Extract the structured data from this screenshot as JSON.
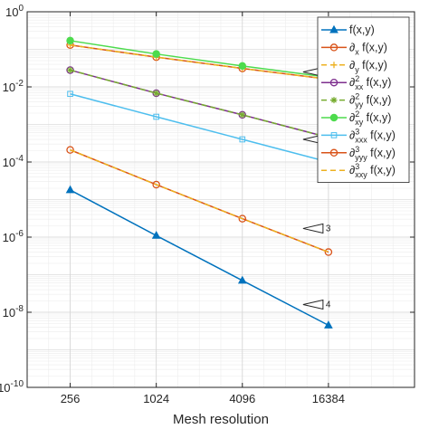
{
  "chart_data": {
    "type": "line",
    "title": "",
    "xlabel": "Mesh resolution",
    "ylabel": "",
    "x_scale": "log2",
    "y_scale": "log10",
    "xlim": [
      128,
      65536
    ],
    "ylim": [
      1e-10,
      1
    ],
    "x_ticks": [
      256,
      1024,
      4096,
      16384
    ],
    "x_tick_labels": [
      "256",
      "1024",
      "4096",
      "16384"
    ],
    "y_ticks": [
      1e-10,
      1e-08,
      1e-06,
      0.0001,
      0.01,
      1
    ],
    "y_tick_labels": [
      {
        "base": "10",
        "exp": "-10"
      },
      {
        "base": "10",
        "exp": "-8"
      },
      {
        "base": "10",
        "exp": "-6"
      },
      {
        "base": "10",
        "exp": "-4"
      },
      {
        "base": "10",
        "exp": "-2"
      },
      {
        "base": "10",
        "exp": "0"
      }
    ],
    "grid": true,
    "minor_grid": true,
    "legend_position": "top-right",
    "x": [
      256,
      1024,
      4096,
      16384
    ],
    "series": [
      {
        "name": "f(x,y)",
        "label": {
          "op": "",
          "sup": "",
          "sub": "",
          "arg": "f(x,y)"
        },
        "color": "#0072BD",
        "dash": "solid",
        "marker": "triangle",
        "marker_fill": "#0072BD",
        "values": [
          1.8e-05,
          1.1e-06,
          7e-08,
          4.5e-09
        ]
      },
      {
        "name": "∂x f(x,y)",
        "label": {
          "op": "∂",
          "sup": "",
          "sub": "x",
          "arg": " f(x,y)"
        },
        "color": "#D95319",
        "dash": "solid",
        "marker": "circle",
        "marker_fill": "none",
        "values": [
          0.13,
          0.062,
          0.031,
          0.016
        ]
      },
      {
        "name": "∂y f(x,y)",
        "label": {
          "op": "∂",
          "sup": "",
          "sub": "y",
          "arg": " f(x,y)"
        },
        "color": "#EDB120",
        "dash": "dash",
        "marker": "plus",
        "marker_fill": "none",
        "values": [
          0.13,
          0.062,
          0.031,
          0.016
        ]
      },
      {
        "name": "∂²xx f(x,y)",
        "label": {
          "op": "∂",
          "sup": "2",
          "sub": "xx",
          "arg": " f(x,y)"
        },
        "color": "#7E2F8E",
        "dash": "solid",
        "marker": "circle",
        "marker_fill": "none",
        "values": [
          0.028,
          0.0068,
          0.0018,
          0.00045
        ]
      },
      {
        "name": "∂²yy f(x,y)",
        "label": {
          "op": "∂",
          "sup": "2",
          "sub": "yy",
          "arg": " f(x,y)"
        },
        "color": "#77AC30",
        "dash": "dash",
        "marker": "star",
        "marker_fill": "none",
        "values": [
          0.028,
          0.0068,
          0.0018,
          0.00045
        ]
      },
      {
        "name": "∂²xy f(x,y)",
        "label": {
          "op": "∂",
          "sup": "2",
          "sub": "xy",
          "arg": " f(x,y)"
        },
        "color": "#4DDB4D",
        "dash": "solid",
        "marker": "circle",
        "marker_fill": "#4DDB4D",
        "values": [
          0.17,
          0.075,
          0.036,
          0.018
        ]
      },
      {
        "name": "∂³xxx f(x,y)",
        "label": {
          "op": "∂",
          "sup": "3",
          "sub": "xxx",
          "arg": " f(x,y)"
        },
        "color": "#4DBEEE",
        "dash": "solid",
        "marker": "square",
        "marker_fill": "none",
        "values": [
          0.0065,
          0.0016,
          0.0004,
          0.0001
        ]
      },
      {
        "name": "∂³yyy f(x,y)",
        "label": {
          "op": "∂",
          "sup": "3",
          "sub": "yyy",
          "arg": " f(x,y)"
        },
        "color": "#D95319",
        "dash": "solid",
        "marker": "circle",
        "marker_fill": "none",
        "values": [
          0.00021,
          2.5e-05,
          3.1e-06,
          4e-07
        ]
      },
      {
        "name": "∂³xxy f(x,y)",
        "label": {
          "op": "∂",
          "sup": "3",
          "sub": "xxy",
          "arg": " f(x,y)"
        },
        "color": "#EDB120",
        "dash": "dash",
        "marker": "none",
        "marker_fill": "none",
        "values": [
          0.00021,
          2.5e-05,
          3.1e-06,
          4e-07
        ]
      }
    ],
    "annotations": [
      {
        "text": "1",
        "at_x": 16384,
        "at_y": 0.025
      },
      {
        "text": "2",
        "at_x": 16384,
        "at_y": 0.0004
      },
      {
        "text": "3",
        "at_x": 16384,
        "at_y": 1.7e-06
      },
      {
        "text": "4",
        "at_x": 16384,
        "at_y": 1.6e-08
      }
    ]
  }
}
